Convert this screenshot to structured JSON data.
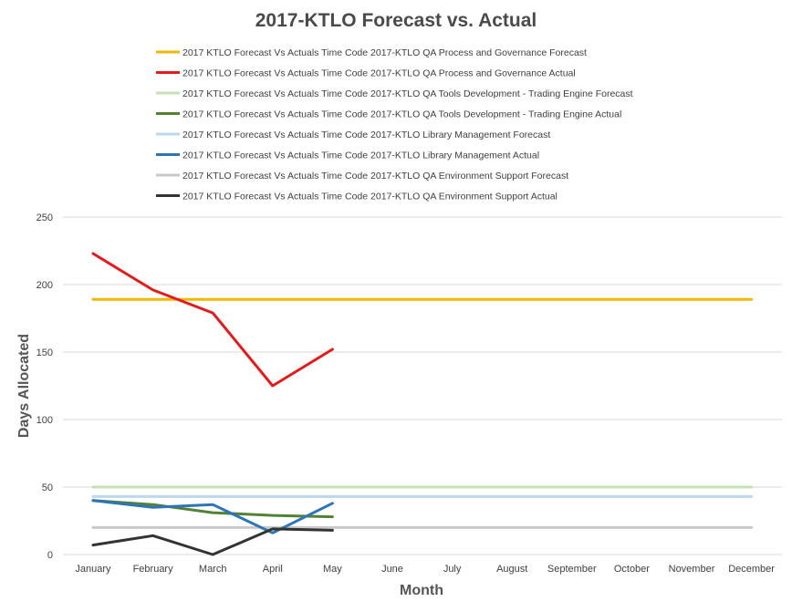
{
  "chart_data": {
    "type": "line",
    "title": "2017-KTLO Forecast vs. Actual",
    "xlabel": "Month",
    "ylabel": "Days Allocated",
    "ylim": [
      0,
      250
    ],
    "yticks": [
      0,
      50,
      100,
      150,
      200,
      250
    ],
    "grid": "horizontal",
    "legend_position": "top",
    "categories": [
      "January",
      "February",
      "March",
      "April",
      "May",
      "June",
      "July",
      "August",
      "September",
      "October",
      "November",
      "December"
    ],
    "series": [
      {
        "name": "2017 KTLO Forecast Vs Actuals Time Code 2017-KTLO QA Process and Governance Forecast",
        "color": "#F2B705",
        "values": [
          189,
          189,
          189,
          189,
          189,
          189,
          189,
          189,
          189,
          189,
          189,
          189
        ]
      },
      {
        "name": "2017 KTLO Forecast Vs Actuals Time Code 2017-KTLO QA Process and Governance Actual",
        "color": "#E21C1C",
        "values": [
          223,
          196,
          179,
          125,
          152,
          null,
          null,
          null,
          null,
          null,
          null,
          null
        ]
      },
      {
        "name": "2017 KTLO Forecast Vs Actuals Time Code 2017-KTLO QA Tools Development - Trading Engine Forecast",
        "color": "#C5E0B4",
        "values": [
          50,
          50,
          50,
          50,
          50,
          50,
          50,
          50,
          50,
          50,
          50,
          50
        ]
      },
      {
        "name": "2017 KTLO Forecast Vs Actuals Time Code 2017-KTLO QA Tools Development - Trading Engine Actual",
        "color": "#548235",
        "values": [
          40,
          37,
          31,
          29,
          28,
          null,
          null,
          null,
          null,
          null,
          null,
          null
        ]
      },
      {
        "name": "2017 KTLO Forecast Vs Actuals Time Code 2017-KTLO Library Management Forecast",
        "color": "#BDD7EE",
        "values": [
          43,
          43,
          43,
          43,
          43,
          43,
          43,
          43,
          43,
          43,
          43,
          43
        ]
      },
      {
        "name": "2017 KTLO Forecast Vs Actuals Time Code 2017-KTLO Library Management Actual",
        "color": "#2E75B6",
        "values": [
          40,
          35,
          37,
          16,
          38,
          null,
          null,
          null,
          null,
          null,
          null,
          null
        ]
      },
      {
        "name": "2017 KTLO Forecast Vs Actuals Time Code 2017-KTLO QA Environment Support Forecast",
        "color": "#C9C9C9",
        "values": [
          20,
          20,
          20,
          20,
          20,
          20,
          20,
          20,
          20,
          20,
          20,
          20
        ]
      },
      {
        "name": "2017 KTLO Forecast Vs Actuals Time Code 2017-KTLO QA Environment Support Actual",
        "color": "#333333",
        "values": [
          7,
          14,
          0,
          19,
          18,
          null,
          null,
          null,
          null,
          null,
          null,
          null
        ]
      }
    ]
  }
}
